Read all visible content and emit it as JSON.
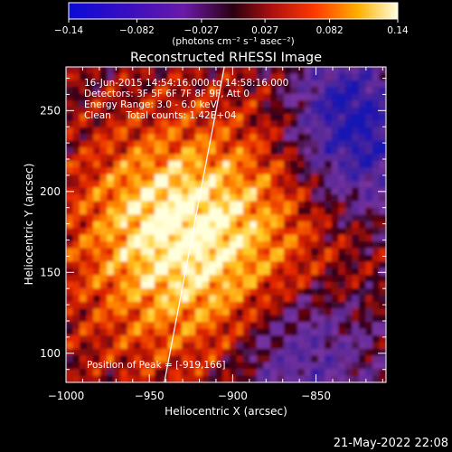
{
  "colorbar": {
    "ticks": [
      "−0.14",
      "−0.082",
      "−0.027",
      "0.027",
      "0.082",
      "0.14"
    ],
    "unit_label": "(photons cm⁻² s⁻¹ asec⁻²)",
    "range": [
      -0.14,
      0.14
    ]
  },
  "chart_data": {
    "type": "heatmap",
    "title": "Reconstructed RHESSI Image",
    "xlabel": "Heliocentric X (arcsec)",
    "ylabel": "Heliocentric Y (arcsec)",
    "xlim": [
      -1000,
      -808
    ],
    "ylim": [
      82,
      277
    ],
    "xticks": [
      "−1000",
      "−950",
      "−900",
      "−850"
    ],
    "xtick_values": [
      -1000,
      -950,
      -900,
      -850
    ],
    "yticks": [
      "100",
      "150",
      "200",
      "250"
    ],
    "ytick_values": [
      100,
      150,
      200,
      250
    ],
    "colorscale": "rhessi rainbow (blue-purple-red-orange-yellow-white)",
    "peak": [
      -919,
      166
    ],
    "limb_line": [
      [
        -941,
        82
      ],
      [
        -905,
        277
      ]
    ],
    "annotations": [
      "16-Jun-2015 14:54:16.000 to 14:58:16.000",
      "Detectors: 3F 5F 6F 7F 8F 9F, Att 0",
      "Energy Range: 3.0 - 6.0 keV",
      "Clean     Total counts: 1.42E+04"
    ],
    "peak_label": "Position of Peak = [-919,166]"
  },
  "footer": {
    "date": "21-May-2022 22:08"
  }
}
